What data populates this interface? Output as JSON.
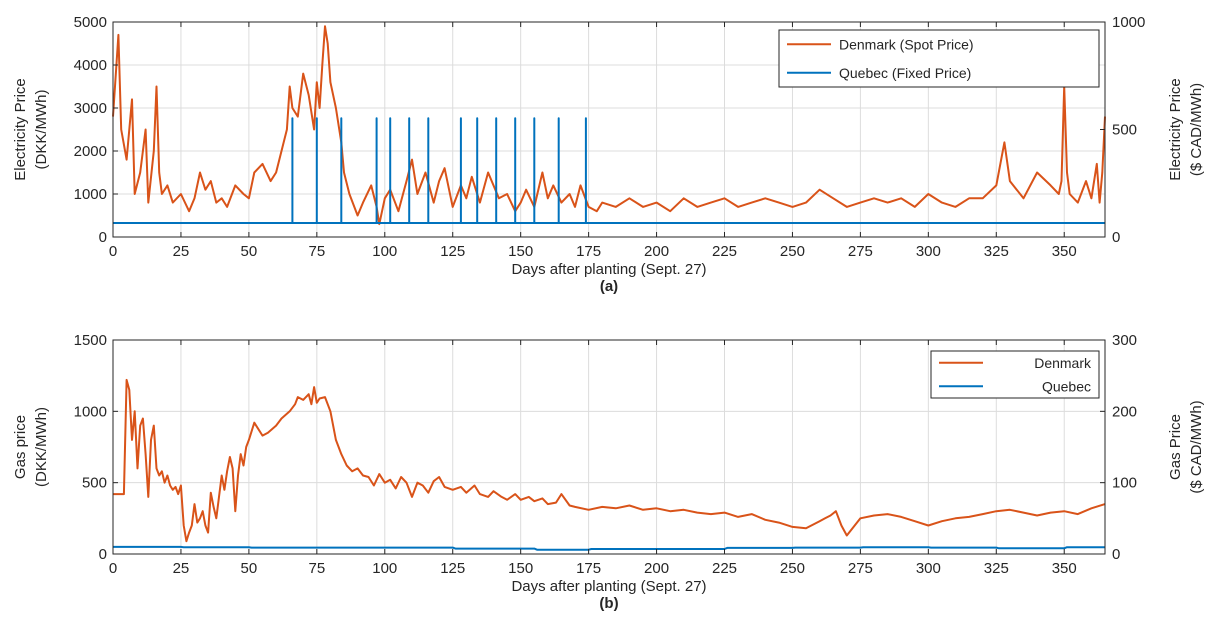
{
  "chart_data": [
    {
      "type": "line",
      "panel_label": "(a)",
      "xlabel": "Days after planting (Sept. 27)",
      "xlim": [
        0,
        365
      ],
      "xticks": [
        0,
        25,
        50,
        75,
        100,
        125,
        150,
        175,
        200,
        225,
        250,
        275,
        300,
        325,
        350
      ],
      "ylabel_left": [
        "Electricity Price",
        "(DKK/MWh)"
      ],
      "ylim_left": [
        0,
        5000
      ],
      "yticks_left": [
        0,
        1000,
        2000,
        3000,
        4000,
        5000
      ],
      "ylabel_right": [
        "Electricity Price",
        "($ CAD/MWh)"
      ],
      "ylim_right": [
        0,
        1000
      ],
      "yticks_right": [
        0,
        500,
        1000
      ],
      "grid": true,
      "legend_position": "top-right",
      "colors": {
        "denmark": "#D95319",
        "quebec": "#0072BD"
      },
      "series": [
        {
          "name": "Denmark (Spot Price)",
          "axis": "left",
          "color": "#D95319",
          "x": [
            0,
            2,
            3,
            5,
            7,
            8,
            10,
            12,
            13,
            15,
            16,
            17,
            18,
            20,
            22,
            25,
            28,
            30,
            32,
            34,
            36,
            38,
            40,
            42,
            45,
            48,
            50,
            52,
            55,
            58,
            60,
            62,
            64,
            65,
            66,
            68,
            70,
            72,
            74,
            75,
            76,
            77,
            78,
            79,
            80,
            82,
            84,
            85,
            87,
            90,
            92,
            95,
            97,
            98,
            100,
            102,
            105,
            108,
            110,
            112,
            115,
            118,
            120,
            122,
            125,
            128,
            130,
            132,
            135,
            138,
            140,
            142,
            145,
            148,
            150,
            152,
            155,
            158,
            160,
            162,
            165,
            168,
            170,
            172,
            175,
            178,
            180,
            185,
            190,
            195,
            200,
            205,
            210,
            215,
            220,
            225,
            230,
            235,
            240,
            245,
            250,
            255,
            260,
            265,
            270,
            275,
            280,
            285,
            290,
            295,
            300,
            305,
            310,
            315,
            320,
            325,
            328,
            330,
            335,
            340,
            345,
            348,
            349,
            350,
            351,
            352,
            355,
            358,
            360,
            362,
            363,
            364,
            365
          ],
          "values": [
            2800,
            4700,
            2500,
            1800,
            3200,
            1000,
            1500,
            2500,
            800,
            2000,
            3500,
            1500,
            1000,
            1200,
            800,
            1000,
            600,
            900,
            1500,
            1100,
            1300,
            800,
            900,
            700,
            1200,
            1000,
            900,
            1500,
            1700,
            1300,
            1500,
            2000,
            2500,
            3500,
            3000,
            2800,
            3800,
            3300,
            2500,
            3600,
            3000,
            4000,
            4900,
            4500,
            3600,
            3000,
            2200,
            1500,
            1000,
            500,
            800,
            1200,
            700,
            300,
            900,
            1100,
            600,
            1300,
            1800,
            1000,
            1500,
            800,
            1300,
            1600,
            700,
            1200,
            900,
            1400,
            800,
            1500,
            1200,
            900,
            1000,
            600,
            800,
            1100,
            700,
            1500,
            900,
            1200,
            800,
            1000,
            700,
            1200,
            700,
            600,
            800,
            700,
            900,
            700,
            800,
            600,
            900,
            700,
            800,
            900,
            700,
            800,
            900,
            800,
            700,
            800,
            1100,
            900,
            700,
            800,
            900,
            800,
            900,
            700,
            1000,
            800,
            700,
            900,
            900,
            1200,
            2200,
            1300,
            900,
            1500,
            1200,
            1000,
            1300,
            3500,
            1500,
            1000,
            800,
            1300,
            900,
            1700,
            800,
            1500,
            2800
          ]
        },
        {
          "name": "Quebec (Fixed Price)",
          "axis": "right",
          "color": "#0072BD",
          "base": 65,
          "spikes_x": [
            66,
            75,
            84,
            97,
            102,
            109,
            116,
            128,
            134,
            141,
            148,
            155,
            164,
            174
          ],
          "spike_value": 552
        }
      ]
    },
    {
      "type": "line",
      "panel_label": "(b)",
      "xlabel": "Days after planting (Sept. 27)",
      "xlim": [
        0,
        365
      ],
      "xticks": [
        0,
        25,
        50,
        75,
        100,
        125,
        150,
        175,
        200,
        225,
        250,
        275,
        300,
        325,
        350
      ],
      "ylabel_left": [
        "Gas price",
        "(DKK/MWh)"
      ],
      "ylim_left": [
        0,
        1500
      ],
      "yticks_left": [
        0,
        500,
        1000,
        1500
      ],
      "ylabel_right": [
        "Gas Price",
        "($ CAD/MWh)"
      ],
      "ylim_right": [
        0,
        300
      ],
      "yticks_right": [
        0,
        100,
        200,
        300
      ],
      "grid": true,
      "legend_position": "top-right",
      "colors": {
        "denmark": "#D95319",
        "quebec": "#0072BD"
      },
      "series": [
        {
          "name": "Denmark",
          "axis": "left",
          "color": "#D95319",
          "x": [
            0,
            4,
            5,
            6,
            7,
            8,
            9,
            10,
            11,
            12,
            13,
            14,
            15,
            16,
            17,
            18,
            19,
            20,
            21,
            22,
            23,
            24,
            25,
            26,
            27,
            28,
            29,
            30,
            31,
            32,
            33,
            34,
            35,
            36,
            37,
            38,
            39,
            40,
            41,
            42,
            43,
            44,
            45,
            46,
            47,
            48,
            49,
            50,
            52,
            55,
            57,
            60,
            62,
            65,
            67,
            68,
            70,
            72,
            73,
            74,
            75,
            76,
            78,
            80,
            82,
            84,
            86,
            88,
            90,
            92,
            94,
            96,
            98,
            100,
            102,
            104,
            106,
            108,
            110,
            112,
            114,
            116,
            118,
            120,
            122,
            125,
            128,
            130,
            133,
            135,
            138,
            140,
            143,
            145,
            148,
            150,
            153,
            155,
            158,
            160,
            163,
            165,
            168,
            170,
            175,
            180,
            185,
            190,
            195,
            200,
            205,
            210,
            215,
            220,
            225,
            230,
            235,
            240,
            245,
            250,
            255,
            260,
            262,
            264,
            266,
            268,
            270,
            275,
            280,
            285,
            290,
            295,
            300,
            305,
            310,
            315,
            320,
            325,
            330,
            335,
            340,
            345,
            350,
            355,
            360,
            365
          ],
          "values": [
            420,
            420,
            1220,
            1150,
            800,
            1000,
            600,
            900,
            950,
            700,
            400,
            800,
            900,
            600,
            550,
            580,
            500,
            550,
            480,
            450,
            470,
            420,
            480,
            200,
            90,
            150,
            200,
            350,
            220,
            250,
            300,
            200,
            150,
            430,
            330,
            250,
            400,
            550,
            450,
            580,
            680,
            600,
            300,
            550,
            700,
            620,
            750,
            800,
            920,
            830,
            850,
            900,
            950,
            1000,
            1050,
            1100,
            1080,
            1120,
            1050,
            1170,
            1060,
            1090,
            1100,
            1000,
            800,
            700,
            620,
            580,
            600,
            550,
            540,
            480,
            560,
            500,
            520,
            460,
            540,
            500,
            400,
            500,
            480,
            430,
            510,
            540,
            470,
            450,
            470,
            430,
            480,
            420,
            400,
            440,
            400,
            380,
            420,
            380,
            400,
            370,
            390,
            350,
            360,
            420,
            340,
            330,
            310,
            330,
            320,
            340,
            310,
            320,
            300,
            310,
            290,
            280,
            290,
            260,
            280,
            240,
            220,
            190,
            180,
            230,
            250,
            270,
            300,
            200,
            130,
            250,
            270,
            280,
            260,
            230,
            200,
            230,
            250,
            260,
            280,
            300,
            310,
            290,
            270,
            290,
            300,
            280,
            320,
            350
          ]
        },
        {
          "name": "Quebec",
          "axis": "right",
          "color": "#0072BD",
          "x": [
            0,
            25,
            26,
            50,
            51,
            75,
            76,
            125,
            126,
            155,
            156,
            175,
            176,
            225,
            226,
            250,
            251,
            275,
            276,
            300,
            301,
            325,
            326,
            350,
            351,
            365
          ],
          "values": [
            10,
            10,
            9.5,
            9.5,
            9,
            9,
            9,
            9,
            7.5,
            7.5,
            6,
            6,
            7,
            7,
            8.5,
            8.5,
            9,
            9,
            9.5,
            9.5,
            9,
            9,
            8,
            8,
            9.5,
            9.5
          ]
        }
      ]
    }
  ]
}
